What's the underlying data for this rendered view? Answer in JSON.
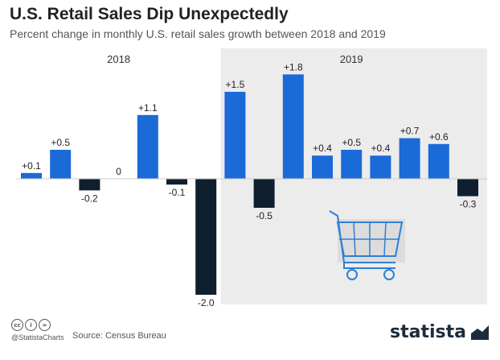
{
  "header": {
    "title": "U.S. Retail Sales Dip Unexpectedly",
    "subtitle": "Percent change in monthly U.S. retail sales growth between 2018 and 2019"
  },
  "chart_data": {
    "type": "bar",
    "year_groups": [
      "2018",
      "2019"
    ],
    "values": [
      0.1,
      0.5,
      -0.2,
      0,
      1.1,
      -0.1,
      -2.0,
      1.5,
      -0.5,
      1.8,
      0.4,
      0.5,
      0.4,
      0.7,
      0.6,
      -0.3
    ],
    "labels": [
      "+0.1",
      "+0.5",
      "-0.2",
      "0",
      "+1.1",
      "-0.1",
      "-2.0",
      "+1.5",
      "-0.5",
      "+1.8",
      "+0.4",
      "+0.5",
      "+0.4",
      "+0.7",
      "+0.6",
      "-0.3"
    ],
    "year_of_bar": [
      0,
      0,
      0,
      0,
      0,
      0,
      0,
      1,
      1,
      1,
      1,
      1,
      1,
      1,
      1,
      1
    ],
    "colors": {
      "positive": "#1a6ad8",
      "negative": "#0f1f2f",
      "highlight_band": "#ececec",
      "cart": "#2e7fd6"
    },
    "grid": false,
    "legend": "none"
  },
  "footer": {
    "handle": "@StatistaCharts",
    "source": "Source: Census Bureau",
    "icons": [
      "cc-icon",
      "by-icon",
      "equals-icon"
    ],
    "cc_glyphs": [
      "cc",
      "i",
      "="
    ],
    "brand": "statista"
  }
}
